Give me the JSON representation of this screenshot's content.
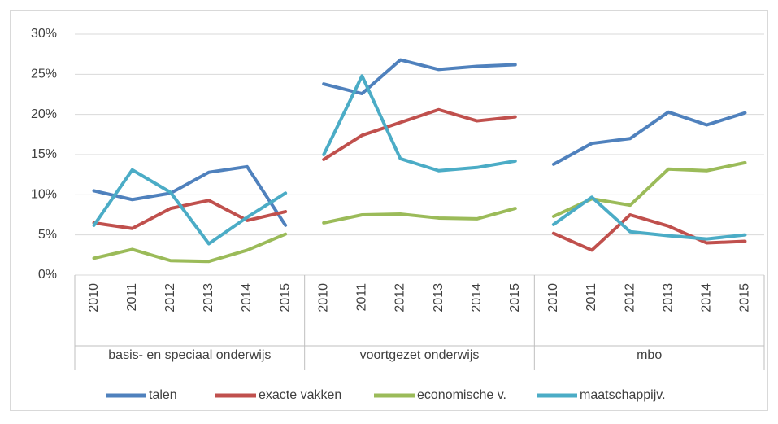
{
  "chart_data": {
    "type": "line",
    "categories": [
      "2010",
      "2011",
      "2012",
      "2013",
      "2014",
      "2015",
      "2010",
      "2011",
      "2012",
      "2013",
      "2014",
      "2015",
      "2010",
      "2011",
      "2012",
      "2013",
      "2014",
      "2015"
    ],
    "groups": [
      "basis- en speciaal onderwijs",
      "voortgezet onderwijs",
      "mbo"
    ],
    "series": [
      {
        "name": "talen",
        "color": "#4f81bd",
        "values": [
          10.5,
          9.4,
          10.2,
          12.8,
          13.5,
          6.2,
          23.8,
          22.6,
          26.8,
          25.6,
          26.0,
          26.2,
          13.8,
          16.4,
          17.0,
          20.3,
          18.7,
          20.2
        ]
      },
      {
        "name": "exacte vakken",
        "color": "#c0504d",
        "values": [
          6.5,
          5.8,
          8.3,
          9.3,
          6.8,
          7.9,
          14.4,
          17.4,
          19.0,
          20.6,
          19.2,
          19.7,
          5.2,
          3.1,
          7.5,
          6.1,
          4.0,
          4.2
        ]
      },
      {
        "name": "economische v.",
        "color": "#9bbb59",
        "values": [
          2.1,
          3.2,
          1.8,
          1.7,
          3.1,
          5.1,
          6.5,
          7.5,
          7.6,
          7.1,
          7.0,
          8.3,
          7.3,
          9.5,
          8.7,
          13.2,
          13.0,
          14.0
        ]
      },
      {
        "name": "maatschappijv.",
        "color": "#4bacc6",
        "values": [
          6.2,
          13.1,
          10.3,
          3.9,
          7.2,
          10.2,
          15.0,
          24.8,
          14.5,
          13.0,
          13.4,
          14.2,
          6.3,
          9.7,
          5.4,
          4.9,
          4.5,
          5.0
        ]
      }
    ],
    "ylim": [
      0,
      30
    ],
    "yticks": [
      {
        "value": 0,
        "label": "0%"
      },
      {
        "value": 5,
        "label": "5%"
      },
      {
        "value": 10,
        "label": "10%"
      },
      {
        "value": 15,
        "label": "15%"
      },
      {
        "value": 20,
        "label": "20%"
      },
      {
        "value": 25,
        "label": "25%"
      },
      {
        "value": 30,
        "label": "30%"
      }
    ],
    "grid": true,
    "legend": "bottom"
  }
}
